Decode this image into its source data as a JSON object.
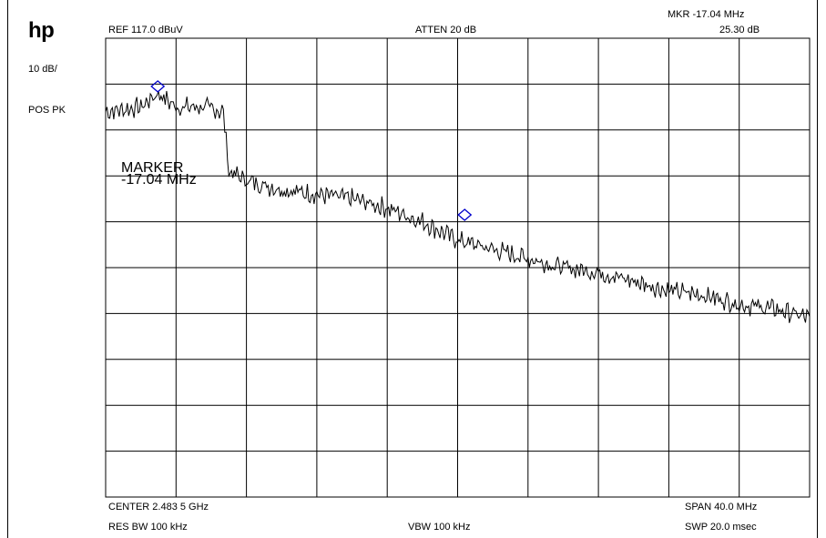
{
  "brand": "hp",
  "header": {
    "ref": "REF  117.0 dBuV",
    "atten": "ATTEN 20 dB",
    "mkr_freq": "MKR  -17.04 MHz",
    "mkr_level": "25.30 dB"
  },
  "side": {
    "scale": "10 dB/",
    "detector": "POS PK"
  },
  "marker_label": {
    "line1": "MARKER",
    "line2": "-17.04 MHz"
  },
  "footer": {
    "center": "CENTER 2.483 5 GHz",
    "span": "SPAN 40.0 MHz",
    "res_bw": "RES BW 100 kHz",
    "vbw": "VBW 100 kHz",
    "swp": "SWP 20.0 msec"
  },
  "colors": {
    "trace": "#000000",
    "grid": "#000000",
    "marker": "#0000cc"
  },
  "chart_data": {
    "type": "line",
    "title": "",
    "xlabel": "",
    "ylabel": "",
    "x_unit": "MHz offset from center",
    "y_unit": "dBuV",
    "xlim": [
      -20,
      20
    ],
    "ylim": [
      17,
      117
    ],
    "grid": true,
    "grid_divisions": {
      "x": 10,
      "y": 10
    },
    "series": [
      {
        "x": [
          -20,
          -18,
          -17.04,
          -16,
          -14.5,
          -13.3,
          -13.0,
          -12,
          -10,
          -8,
          -6,
          -4,
          -2,
          0,
          2,
          4,
          6,
          8,
          10,
          12,
          14,
          16,
          18,
          20
        ],
        "values": [
          101,
          102,
          105,
          102,
          102,
          101,
          88,
          86,
          84,
          83,
          82,
          80,
          77,
          73,
          71,
          69,
          67,
          66,
          64,
          62,
          61,
          59,
          58,
          56
        ]
      }
    ],
    "markers": [
      {
        "x": -17.04,
        "value": 106.5
      },
      {
        "x": 0.4,
        "value": 78.5
      }
    ]
  }
}
